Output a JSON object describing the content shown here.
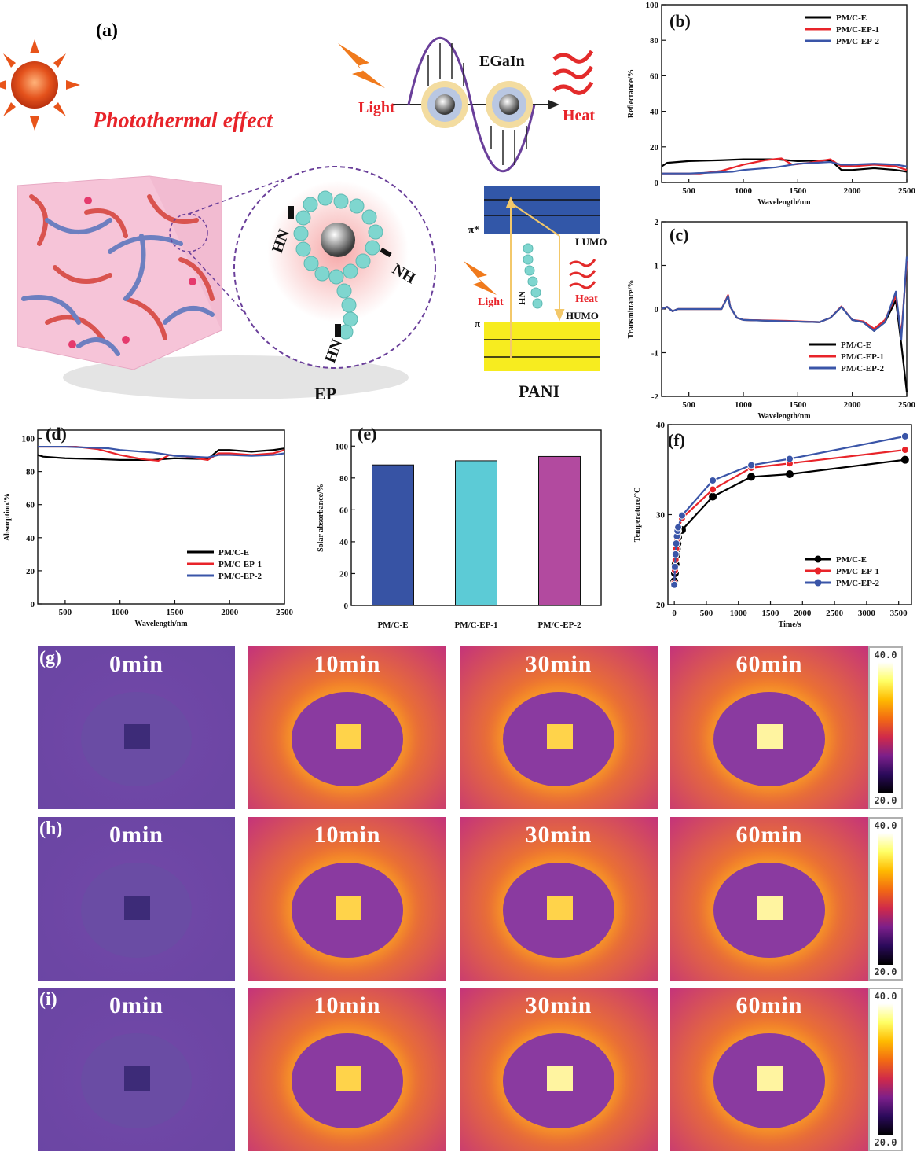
{
  "panel_a": {
    "label": "(a)",
    "title": "Photothermal effect",
    "egain": "EGaIn",
    "light": "Light",
    "heat": "Heat",
    "ep_label": "EP",
    "pani_label": "PANI",
    "lumo": "LUMO",
    "humo": "HUMO",
    "pi_star": "π*",
    "pi": "π",
    "hn": "HN",
    "nh": "NH",
    "colors": {
      "title": "#e8242a",
      "lumo_band": "#3257a8",
      "humo_band": "#f7ec1f",
      "ep_glow": "#f28a8a",
      "cube": "#f3b8cf"
    }
  },
  "chart_data": [
    {
      "id": "b",
      "panel_label": "(b)",
      "type": "line",
      "xlabel": "Wavelength/nm",
      "ylabel": "Reflectance/%",
      "xlim": [
        250,
        2500
      ],
      "ylim": [
        0,
        100
      ],
      "xticks": [
        500,
        1000,
        1500,
        2000,
        2500
      ],
      "yticks": [
        0,
        20,
        40,
        60,
        80,
        100
      ],
      "legend": "top-right",
      "series": [
        {
          "name": "PM/C-E",
          "color": "#000000",
          "x": [
            250,
            300,
            500,
            800,
            1000,
            1300,
            1400,
            1500,
            1800,
            1900,
            2000,
            2200,
            2400,
            2500
          ],
          "y": [
            9,
            11,
            12,
            12.5,
            13,
            13,
            12.5,
            12,
            12.5,
            7,
            7,
            8,
            7,
            6
          ]
        },
        {
          "name": "PM/C-EP-1",
          "color": "#e8242a",
          "x": [
            250,
            400,
            600,
            800,
            1000,
            1200,
            1350,
            1450,
            1600,
            1800,
            1900,
            2000,
            2200,
            2400,
            2500
          ],
          "y": [
            5,
            5,
            5,
            6.5,
            10,
            12.5,
            13.5,
            10,
            11,
            13,
            9,
            9,
            10,
            9,
            7
          ]
        },
        {
          "name": "PM/C-EP-2",
          "color": "#3a55a8",
          "x": [
            250,
            500,
            900,
            1000,
            1300,
            1400,
            1500,
            1800,
            1900,
            2000,
            2200,
            2400,
            2500
          ],
          "y": [
            5,
            5,
            6,
            7,
            8.5,
            9.5,
            10.5,
            11.5,
            10,
            10,
            10.5,
            10,
            9
          ]
        }
      ]
    },
    {
      "id": "c",
      "panel_label": "(c)",
      "type": "line",
      "xlabel": "Wavelength/nm",
      "ylabel": "Transmittance/%",
      "xlim": [
        250,
        2500
      ],
      "ylim": [
        -2,
        2
      ],
      "xticks": [
        500,
        1000,
        1500,
        2000,
        2500
      ],
      "yticks": [
        -2,
        -1,
        0,
        1,
        2
      ],
      "legend": "bottom-right",
      "series": [
        {
          "name": "PM/C-E",
          "color": "#000000",
          "x": [
            250,
            300,
            350,
            400,
            800,
            860,
            880,
            940,
            1000,
            1400,
            1700,
            1800,
            1900,
            2000,
            2100,
            2200,
            2300,
            2400,
            2450,
            2500
          ],
          "y": [
            0,
            0.05,
            -0.05,
            0,
            0,
            0.3,
            0.05,
            -0.2,
            -0.25,
            -0.28,
            -0.3,
            -0.2,
            0.05,
            -0.25,
            -0.3,
            -0.5,
            -0.3,
            0.2,
            -0.8,
            -1.9
          ]
        },
        {
          "name": "PM/C-EP-1",
          "color": "#e8242a",
          "x": [
            250,
            300,
            350,
            400,
            800,
            860,
            880,
            940,
            1000,
            1400,
            1700,
            1800,
            1900,
            2000,
            2100,
            2200,
            2300,
            2400,
            2450,
            2500
          ],
          "y": [
            0,
            0.05,
            -0.05,
            0,
            0,
            0.32,
            0.05,
            -0.2,
            -0.25,
            -0.27,
            -0.3,
            -0.2,
            0.06,
            -0.25,
            -0.28,
            -0.45,
            -0.25,
            0.3,
            -0.6,
            1.1
          ]
        },
        {
          "name": "PM/C-EP-2",
          "color": "#3a55a8",
          "x": [
            250,
            300,
            350,
            400,
            800,
            860,
            880,
            940,
            1000,
            1400,
            1700,
            1800,
            1900,
            2000,
            2100,
            2200,
            2300,
            2400,
            2450,
            2500
          ],
          "y": [
            0,
            0.05,
            -0.05,
            0,
            0,
            0.3,
            0.05,
            -0.2,
            -0.25,
            -0.28,
            -0.3,
            -0.2,
            0.05,
            -0.25,
            -0.3,
            -0.5,
            -0.3,
            0.4,
            -0.7,
            1.2
          ]
        }
      ]
    },
    {
      "id": "d",
      "panel_label": "(d)",
      "type": "line",
      "xlabel": "Wavelength/nm",
      "ylabel": "Absorption/%",
      "xlim": [
        250,
        2500
      ],
      "ylim": [
        0,
        105
      ],
      "xticks": [
        500,
        1000,
        1500,
        2000,
        2500
      ],
      "yticks": [
        0,
        20,
        40,
        60,
        80,
        100
      ],
      "legend": "bottom-right",
      "series": [
        {
          "name": "PM/C-E",
          "color": "#000000",
          "x": [
            250,
            300,
            500,
            800,
            1000,
            1300,
            1400,
            1500,
            1800,
            1900,
            2000,
            2200,
            2400,
            2500
          ],
          "y": [
            90,
            89,
            88,
            87.5,
            87,
            87,
            87.5,
            88,
            87.5,
            93,
            93,
            92,
            93,
            94
          ]
        },
        {
          "name": "PM/C-EP-1",
          "color": "#e8242a",
          "x": [
            250,
            400,
            600,
            800,
            1000,
            1200,
            1350,
            1450,
            1600,
            1800,
            1900,
            2000,
            2200,
            2400,
            2500
          ],
          "y": [
            95,
            95,
            95,
            93.5,
            90,
            87.5,
            86.5,
            90,
            89,
            87,
            91,
            91,
            90,
            91,
            93
          ]
        },
        {
          "name": "PM/C-EP-2",
          "color": "#3a55a8",
          "x": [
            250,
            500,
            900,
            1000,
            1300,
            1400,
            1500,
            1800,
            1900,
            2000,
            2200,
            2400,
            2500
          ],
          "y": [
            95,
            95,
            94,
            93,
            91.5,
            90.5,
            89.5,
            88.5,
            90,
            90,
            89.5,
            90,
            91
          ]
        }
      ]
    },
    {
      "id": "e",
      "panel_label": "(e)",
      "type": "bar",
      "ylabel": "Solar absorbance/%",
      "ylim": [
        0,
        110
      ],
      "yticks": [
        0,
        20,
        40,
        60,
        80,
        100
      ],
      "categories": [
        "PM/C-E",
        "PM/C-EP-1",
        "PM/C-EP-2"
      ],
      "values": [
        88.2,
        90.8,
        93.5
      ],
      "colors": [
        "#3753a4",
        "#5ccbd6",
        "#b24a9f"
      ]
    },
    {
      "id": "f",
      "panel_label": "(f)",
      "type": "line",
      "xlabel": "Time/s",
      "ylabel": "Temperature/°C",
      "xlim": [
        -100,
        3700
      ],
      "ylim": [
        20,
        40
      ],
      "xticks": [
        0,
        500,
        1000,
        1500,
        2000,
        2500,
        3000,
        3500
      ],
      "yticks": [
        20,
        30,
        40
      ],
      "legend": "bottom-right",
      "series": [
        {
          "name": "PM/C-E",
          "color": "#000000",
          "x": [
            0,
            10,
            20,
            30,
            40,
            50,
            60,
            120,
            600,
            1200,
            1800,
            3600
          ],
          "y": [
            22.6,
            23.5,
            24.5,
            25.5,
            26.2,
            26.8,
            27.5,
            28.3,
            32.0,
            34.2,
            34.5,
            36.1
          ]
        },
        {
          "name": "PM/C-EP-1",
          "color": "#e8242a",
          "x": [
            0,
            10,
            20,
            30,
            40,
            50,
            60,
            120,
            600,
            1200,
            1800,
            3600
          ],
          "y": [
            22.4,
            23.8,
            25.0,
            26.2,
            27.0,
            27.6,
            28.2,
            29.6,
            32.8,
            35.2,
            35.7,
            37.2
          ]
        },
        {
          "name": "PM/C-EP-2",
          "color": "#3a55a8",
          "x": [
            0,
            10,
            20,
            30,
            40,
            50,
            60,
            120,
            600,
            1200,
            1800,
            3600
          ],
          "y": [
            22.2,
            24.2,
            25.6,
            26.8,
            27.6,
            28.2,
            28.6,
            29.9,
            33.8,
            35.5,
            36.2,
            38.7
          ]
        }
      ]
    }
  ],
  "thermal_images": {
    "rows": [
      {
        "label": "(g)",
        "times": [
          "0min",
          "10min",
          "30min",
          "60min"
        ],
        "levels": [
          0.1,
          0.7,
          0.78,
          0.86
        ]
      },
      {
        "label": "(h)",
        "times": [
          "0min",
          "10min",
          "30min",
          "60min"
        ],
        "levels": [
          0.1,
          0.72,
          0.8,
          0.88
        ]
      },
      {
        "label": "(i)",
        "times": [
          "0min",
          "10min",
          "30min",
          "60min"
        ],
        "levels": [
          0.12,
          0.78,
          0.86,
          0.95
        ]
      }
    ],
    "colorbar": {
      "max": "40.0",
      "min": "20.0"
    }
  }
}
